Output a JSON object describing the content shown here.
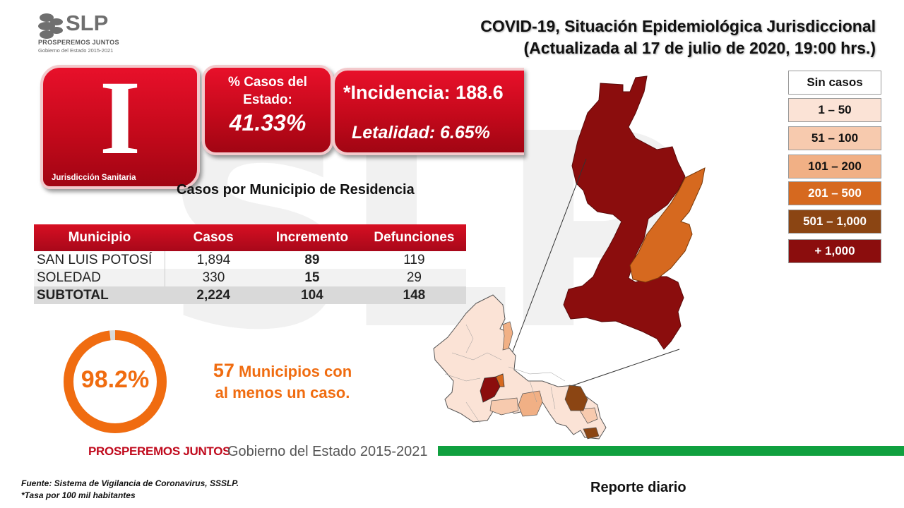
{
  "brand": {
    "logo_text": "SLP",
    "logo_sub1": "PROSPEREMOS JUNTOS",
    "logo_sub2": "Gobierno del Estado 2015-2021"
  },
  "title": {
    "line1": "COVID-19, Situación Epidemiológica Jurisdiccional",
    "line2": "(Actualizada al 17 de julio de 2020, 19:00 hrs.)"
  },
  "jurisdiction": {
    "numeral": "I",
    "label": "Jurisdicción Sanitaria"
  },
  "percentage": {
    "label": "% Casos del Estado:",
    "value": "41.33%"
  },
  "rates": {
    "incidence": "*Incidencia: 188.6",
    "lethality": "Letalidad: 6.65%"
  },
  "table": {
    "title": "Casos por Municipio  de Residencia",
    "headers": [
      "Municipio",
      "Casos",
      "Incremento",
      "Defunciones"
    ],
    "rows": [
      [
        "SAN LUIS POTOSÍ",
        "1,894",
        "89",
        "119"
      ],
      [
        "SOLEDAD",
        "330",
        "15",
        "29"
      ],
      [
        "SUBTOTAL",
        "2,224",
        "104",
        "148"
      ]
    ]
  },
  "legend": [
    {
      "label": "Sin casos",
      "color": "#ffffff"
    },
    {
      "label": "1 – 50",
      "color": "#fbe3d6"
    },
    {
      "label": "51 – 100",
      "color": "#f7caae"
    },
    {
      "label": "101 – 200",
      "color": "#f1b085"
    },
    {
      "label": "201 – 500",
      "color": "#d6691f"
    },
    {
      "label": "501 – 1,000",
      "color": "#8b4513"
    },
    {
      "label": "+ 1,000",
      "color": "#8b0d0d"
    }
  ],
  "coverage": {
    "percent_text": "98.2%",
    "percent_value": 98.2,
    "count": "57",
    "text_line1": "Municipios con",
    "text_line2": "al menos un caso."
  },
  "footer": {
    "prosperemos": "PROSPEREMOS JUNTOS",
    "gobierno": "Gobierno del Estado 2015-2021",
    "source": "Fuente: Sistema de Vigilancia de Coronavirus, SSSLP.",
    "note": "*Tasa por 100 mil habitantes",
    "report": "Reporte diario"
  },
  "colors": {
    "accent_red": "#c4091b",
    "orange": "#f06c10",
    "green": "#10a03f"
  }
}
